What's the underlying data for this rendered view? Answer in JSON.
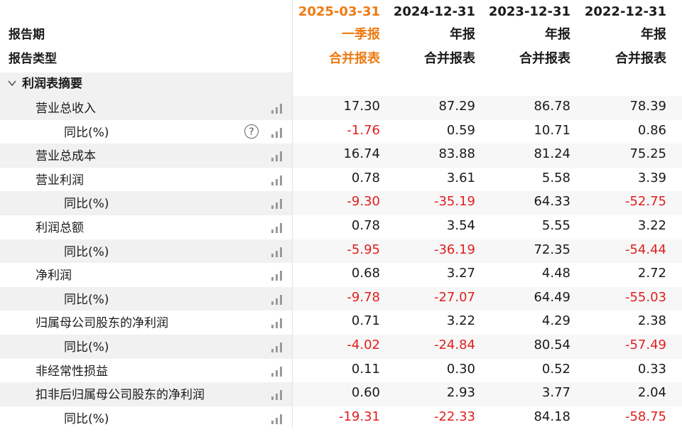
{
  "header": {
    "periods": [
      "2025-03-31",
      "2024-12-31",
      "2023-12-31",
      "2022-12-31"
    ],
    "report_period_label": "报告期",
    "report_type_label": "报告类型",
    "report_periods": [
      "一季报",
      "年报",
      "年报",
      "年报"
    ],
    "report_types": [
      "合并报表",
      "合并报表",
      "合并报表",
      "合并报表"
    ],
    "highlight_color": "#ee7a12"
  },
  "section": {
    "title": "利润表摘要",
    "expanded": true
  },
  "rows": [
    {
      "label": "营业总收入",
      "level": 1,
      "values": [
        "17.30",
        "87.29",
        "86.78",
        "78.39"
      ]
    },
    {
      "label": "同比(%)",
      "level": 2,
      "help": true,
      "values": [
        "-1.76",
        "0.59",
        "10.71",
        "0.86"
      ]
    },
    {
      "label": "营业总成本",
      "level": 1,
      "values": [
        "16.74",
        "83.88",
        "81.24",
        "75.25"
      ]
    },
    {
      "label": "营业利润",
      "level": 1,
      "values": [
        "0.78",
        "3.61",
        "5.58",
        "3.39"
      ]
    },
    {
      "label": "同比(%)",
      "level": 2,
      "values": [
        "-9.30",
        "-35.19",
        "64.33",
        "-52.75"
      ]
    },
    {
      "label": "利润总额",
      "level": 1,
      "values": [
        "0.78",
        "3.54",
        "5.55",
        "3.22"
      ]
    },
    {
      "label": "同比(%)",
      "level": 2,
      "values": [
        "-5.95",
        "-36.19",
        "72.35",
        "-54.44"
      ]
    },
    {
      "label": "净利润",
      "level": 1,
      "values": [
        "0.68",
        "3.27",
        "4.48",
        "2.72"
      ]
    },
    {
      "label": "同比(%)",
      "level": 2,
      "values": [
        "-9.78",
        "-27.07",
        "64.49",
        "-55.03"
      ]
    },
    {
      "label": "归属母公司股东的净利润",
      "level": 1,
      "values": [
        "0.71",
        "3.22",
        "4.29",
        "2.38"
      ]
    },
    {
      "label": "同比(%)",
      "level": 2,
      "values": [
        "-4.02",
        "-24.84",
        "80.54",
        "-57.49"
      ]
    },
    {
      "label": "非经常性损益",
      "level": 1,
      "values": [
        "0.11",
        "0.30",
        "0.52",
        "0.33"
      ]
    },
    {
      "label": "扣非后归属母公司股东的净利润",
      "level": 1,
      "values": [
        "0.60",
        "2.93",
        "3.77",
        "2.04"
      ]
    },
    {
      "label": "同比(%)",
      "level": 2,
      "values": [
        "-19.31",
        "-22.33",
        "84.18",
        "-58.75"
      ]
    }
  ],
  "colors": {
    "negative": "#e02020",
    "positive": "#1a1a1a"
  },
  "icons": {
    "chart": "bar-chart-icon",
    "help": "help-circle-icon",
    "expand": "chevron-down-icon"
  }
}
